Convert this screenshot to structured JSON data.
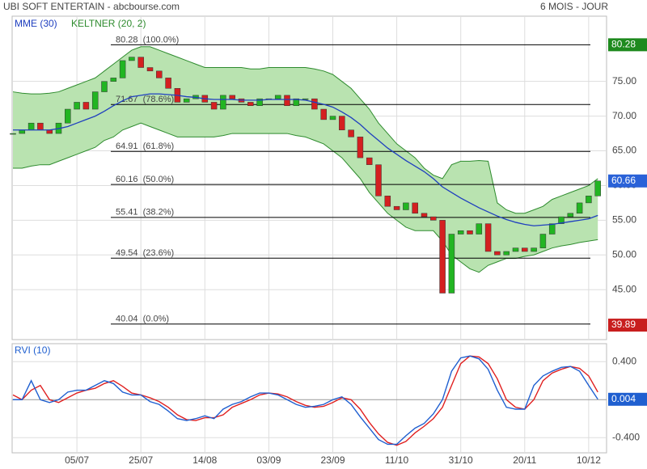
{
  "header": {
    "title": "UBI SOFT ENTERTAIN - abcbourse.com",
    "period": "6 MOIS - JOUR"
  },
  "chart_data": [
    {
      "type": "candlestick",
      "categories": [
        null,
        null,
        null,
        null,
        null,
        null,
        null,
        "05/07",
        null,
        null,
        null,
        null,
        null,
        null,
        "25/07",
        null,
        null,
        null,
        null,
        null,
        null,
        "14/08",
        null,
        null,
        null,
        null,
        null,
        null,
        "03/09",
        null,
        null,
        null,
        null,
        null,
        null,
        "23/09",
        null,
        null,
        null,
        null,
        null,
        null,
        "11/10",
        null,
        null,
        null,
        null,
        null,
        null,
        "31/10",
        null,
        null,
        null,
        null,
        null,
        null,
        "20/11",
        null,
        null,
        null,
        null,
        null,
        null,
        "10/12",
        null
      ],
      "values": [
        67.5,
        68,
        69,
        68,
        67.5,
        69,
        71,
        72,
        71,
        73.5,
        75,
        75.5,
        78,
        78.5,
        77,
        76.5,
        75.5,
        74,
        72,
        72.5,
        73,
        72,
        71,
        73,
        72.5,
        72,
        71.5,
        72.5,
        72.5,
        73,
        71.5,
        72.5,
        72.5,
        71,
        69.5,
        70,
        68,
        67,
        64,
        63,
        58.5,
        57,
        56.5,
        57.5,
        56,
        55.5,
        55,
        44.5,
        53,
        53.5,
        53,
        54.5,
        50.5,
        50,
        50.5,
        51,
        50.5,
        51,
        53,
        54.5,
        55.5,
        56,
        57.5,
        58.5,
        60.66
      ],
      "up_color": "#22b522",
      "down_color": "#d42020",
      "series": [
        {
          "name": "MME (30)",
          "color": "#1f3fbf",
          "values": [
            68,
            68,
            68,
            68,
            68,
            68.2,
            68.5,
            69,
            69.5,
            70,
            70.7,
            71.5,
            72.2,
            72.8,
            73,
            73.2,
            73.2,
            73.1,
            73,
            72.8,
            72.7,
            72.5,
            72.4,
            72.4,
            72.4,
            72.3,
            72.3,
            72.3,
            72.4,
            72.4,
            72.4,
            72.4,
            72.3,
            72,
            71.7,
            71.3,
            70.6,
            69.8,
            68.8,
            67.6,
            66.5,
            65.4,
            64.5,
            63.6,
            62.8,
            62,
            61,
            59.8,
            59,
            58.2,
            57.5,
            56.8,
            56.2,
            55.6,
            55.1,
            54.7,
            54.4,
            54.2,
            54.3,
            54.4,
            54.6,
            54.8,
            55,
            55.2,
            55.7
          ]
        },
        {
          "name": "KELTNER (20, 2)",
          "color": "#2e8b2e",
          "fill": "#b9e3b0",
          "upper": [
            73.5,
            73.3,
            73.2,
            73.2,
            73.3,
            73.5,
            74,
            74.5,
            75,
            75.5,
            76.5,
            77.5,
            78.5,
            79.5,
            80,
            80,
            79.5,
            79,
            78.5,
            78,
            77.5,
            77,
            77,
            77,
            77,
            77,
            76.8,
            76.8,
            77,
            77,
            77,
            77,
            77,
            76.8,
            76.5,
            76,
            75,
            74,
            72.5,
            71,
            69,
            67.5,
            66,
            65,
            64,
            62.5,
            61.5,
            61,
            63,
            63.5,
            63.5,
            63.6,
            63.5,
            57.5,
            56.5,
            56,
            56,
            56.5,
            57,
            58,
            58.5,
            59,
            59.5,
            60,
            61
          ],
          "lower": [
            62.5,
            62.5,
            62.8,
            63,
            63,
            63.5,
            64,
            64.5,
            65,
            65.5,
            66.5,
            67,
            68,
            68.5,
            69,
            68.5,
            68,
            67.5,
            67,
            67,
            67,
            67,
            67,
            67.2,
            67.5,
            67.5,
            67.5,
            67.5,
            67.5,
            67.5,
            67.5,
            67.2,
            67,
            66.5,
            66,
            65,
            64,
            62.5,
            61,
            59,
            57.5,
            56,
            55,
            54,
            53.5,
            53.5,
            53.5,
            52,
            50,
            49,
            48,
            47.5,
            48.5,
            49,
            49.5,
            49.5,
            49.8,
            50,
            50.5,
            51,
            51.3,
            51.5,
            51.8,
            52,
            52.2
          ]
        }
      ],
      "ylim": [
        37.8,
        84.4
      ],
      "yticks": [
        {
          "value": 75,
          "label": "75.00"
        },
        {
          "value": 70,
          "label": "70.00"
        },
        {
          "value": 65,
          "label": "65.00"
        },
        {
          "value": 60,
          "label": "60.00"
        },
        {
          "value": 55,
          "label": "55.00"
        },
        {
          "value": 50,
          "label": "50.00"
        },
        {
          "value": 45,
          "label": "45.00"
        }
      ],
      "grid": true,
      "fib_levels": [
        {
          "value": 80.28,
          "label": "80.28  (100.0%)"
        },
        {
          "value": 71.67,
          "label": "71.67  (78.6%)"
        },
        {
          "value": 64.91,
          "label": "64.91  (61.8%)"
        },
        {
          "value": 60.16,
          "label": "60.16  (50.0%)"
        },
        {
          "value": 55.41,
          "label": "55.41  (38.2%)"
        },
        {
          "value": 49.54,
          "label": "49.54  (23.6%)"
        },
        {
          "value": 40.04,
          "label": "40.04  (0.0%)"
        }
      ],
      "price_high": 80.28,
      "price_low": 39.89,
      "high_color": "#1e8a1e",
      "low_color": "#c81e1e",
      "last_color": "#2a62d8"
    },
    {
      "type": "line",
      "title": "RVI (10)",
      "series": [
        {
          "color": "#1f5fd0",
          "values": [
            0,
            0,
            0.2,
            0,
            -0.03,
            0,
            0.08,
            0.1,
            0.1,
            0.15,
            0.2,
            0.17,
            0.08,
            0.05,
            0.05,
            -0.02,
            -0.05,
            -0.12,
            -0.2,
            -0.22,
            -0.2,
            -0.17,
            -0.2,
            -0.1,
            -0.05,
            -0.02,
            0.03,
            0.07,
            0.07,
            0.05,
            0,
            -0.05,
            -0.08,
            -0.07,
            -0.05,
            0,
            0.03,
            -0.05,
            -0.18,
            -0.3,
            -0.42,
            -0.47,
            -0.47,
            -0.38,
            -0.3,
            -0.25,
            -0.15,
            0,
            0.3,
            0.44,
            0.46,
            0.43,
            0.32,
            0.1,
            -0.08,
            -0.1,
            -0.1,
            0.15,
            0.25,
            0.3,
            0.34,
            0.35,
            0.3,
            0.15,
            0.004
          ]
        },
        {
          "color": "#e02020",
          "values": [
            0.05,
            0,
            0.1,
            0.15,
            0,
            -0.03,
            0.02,
            0.07,
            0.1,
            0.12,
            0.17,
            0.2,
            0.14,
            0.07,
            0.05,
            0.02,
            -0.02,
            -0.08,
            -0.16,
            -0.21,
            -0.22,
            -0.19,
            -0.19,
            -0.16,
            -0.08,
            -0.04,
            0,
            0.05,
            0.07,
            0.06,
            0.03,
            -0.02,
            -0.06,
            -0.08,
            -0.07,
            -0.03,
            0.02,
            0,
            -0.1,
            -0.24,
            -0.36,
            -0.45,
            -0.48,
            -0.44,
            -0.35,
            -0.28,
            -0.2,
            -0.08,
            0.15,
            0.38,
            0.46,
            0.45,
            0.38,
            0.22,
            0,
            -0.08,
            -0.1,
            0,
            0.2,
            0.28,
            0.32,
            0.35,
            0.33,
            0.25,
            0.08
          ]
        }
      ],
      "ylim": [
        -0.56,
        0.59
      ],
      "yticks": [
        {
          "value": 0.4,
          "label": "0.400"
        },
        {
          "value": -0.4,
          "label": "-0.400"
        }
      ],
      "grid": true
    }
  ]
}
